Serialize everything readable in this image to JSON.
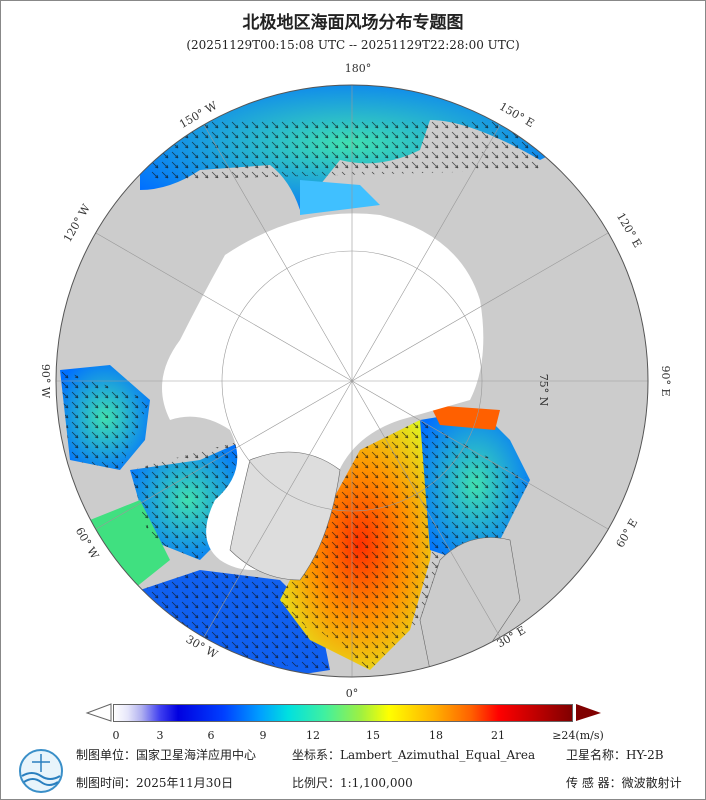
{
  "title": "北极地区海面风场分布专题图",
  "subtitle": "(20251129T00:15:08 UTC -- 20251129T22:28:00 UTC)",
  "map": {
    "projection": "Lambert_Azimuthal_Equal_Area",
    "longitude_labels": {
      "top": "180°",
      "w150": "150° W",
      "w120": "120° W",
      "w90": "90° W",
      "w60": "60° W",
      "w30": "30° W",
      "bottom": "0°",
      "e30": "30° E",
      "e60": "60° E",
      "e90": "90° E",
      "e120": "120° E",
      "e150": "150° E"
    },
    "latitude_label": "75° N",
    "colors": {
      "ocean_nodata": "#cccccc",
      "land_ice": "#ffffff",
      "border": "#555555"
    }
  },
  "colorbar": {
    "ticks": [
      "0",
      "3",
      "6",
      "9",
      "12",
      "15",
      "18",
      "21",
      "≥24(m/s)"
    ],
    "min": 0,
    "max": 24,
    "unit": "m/s"
  },
  "footer": {
    "org_label": "制图单位：国家卫星海洋应用中心",
    "date_label": "制图时间：2025年11月30日",
    "crs_label": "坐标系：Lambert_Azimuthal_Equal_Area",
    "scale_label": "比例尺：1:1,100,000",
    "satellite_label": "卫星名称：HY-2B",
    "sensor_label": "传 感 器：微波散射计"
  }
}
